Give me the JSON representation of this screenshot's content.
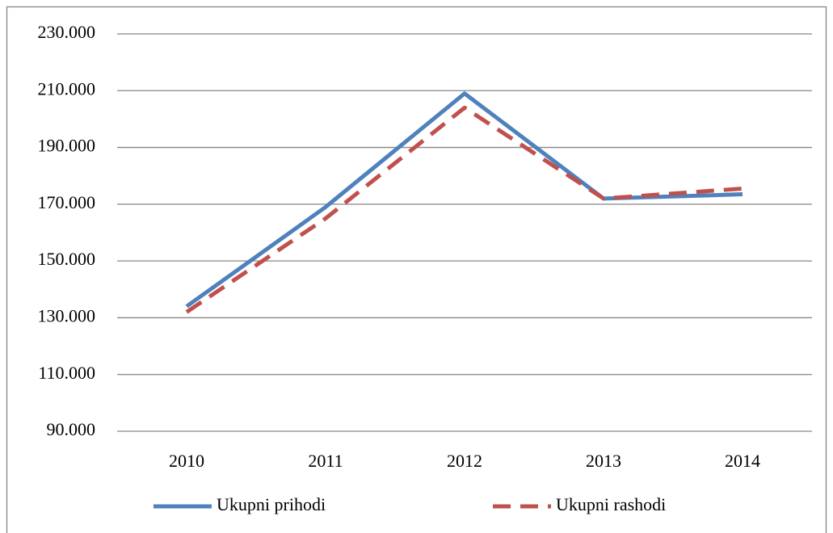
{
  "chart_data": {
    "type": "line",
    "categories": [
      "2010",
      "2011",
      "2012",
      "2013",
      "2014"
    ],
    "series": [
      {
        "name": "Ukupni prihodi",
        "color": "#4f81bd",
        "dash": false,
        "values": [
          134000,
          169000,
          209000,
          172000,
          173500
        ]
      },
      {
        "name": "Ukupni rashodi",
        "color": "#c0504d",
        "dash": true,
        "values": [
          132000,
          165000,
          204000,
          172000,
          175500
        ]
      }
    ],
    "ylim": [
      90000,
      230000
    ],
    "yticks": [
      {
        "value": 90000,
        "label": "90.000"
      },
      {
        "value": 110000,
        "label": "110.000"
      },
      {
        "value": 130000,
        "label": "130.000"
      },
      {
        "value": 150000,
        "label": "150.000"
      },
      {
        "value": 170000,
        "label": "170.000"
      },
      {
        "value": 190000,
        "label": "190.000"
      },
      {
        "value": 210000,
        "label": "210.000"
      },
      {
        "value": 230000,
        "label": "230.000"
      }
    ],
    "grid": true,
    "legend": "bottom"
  }
}
